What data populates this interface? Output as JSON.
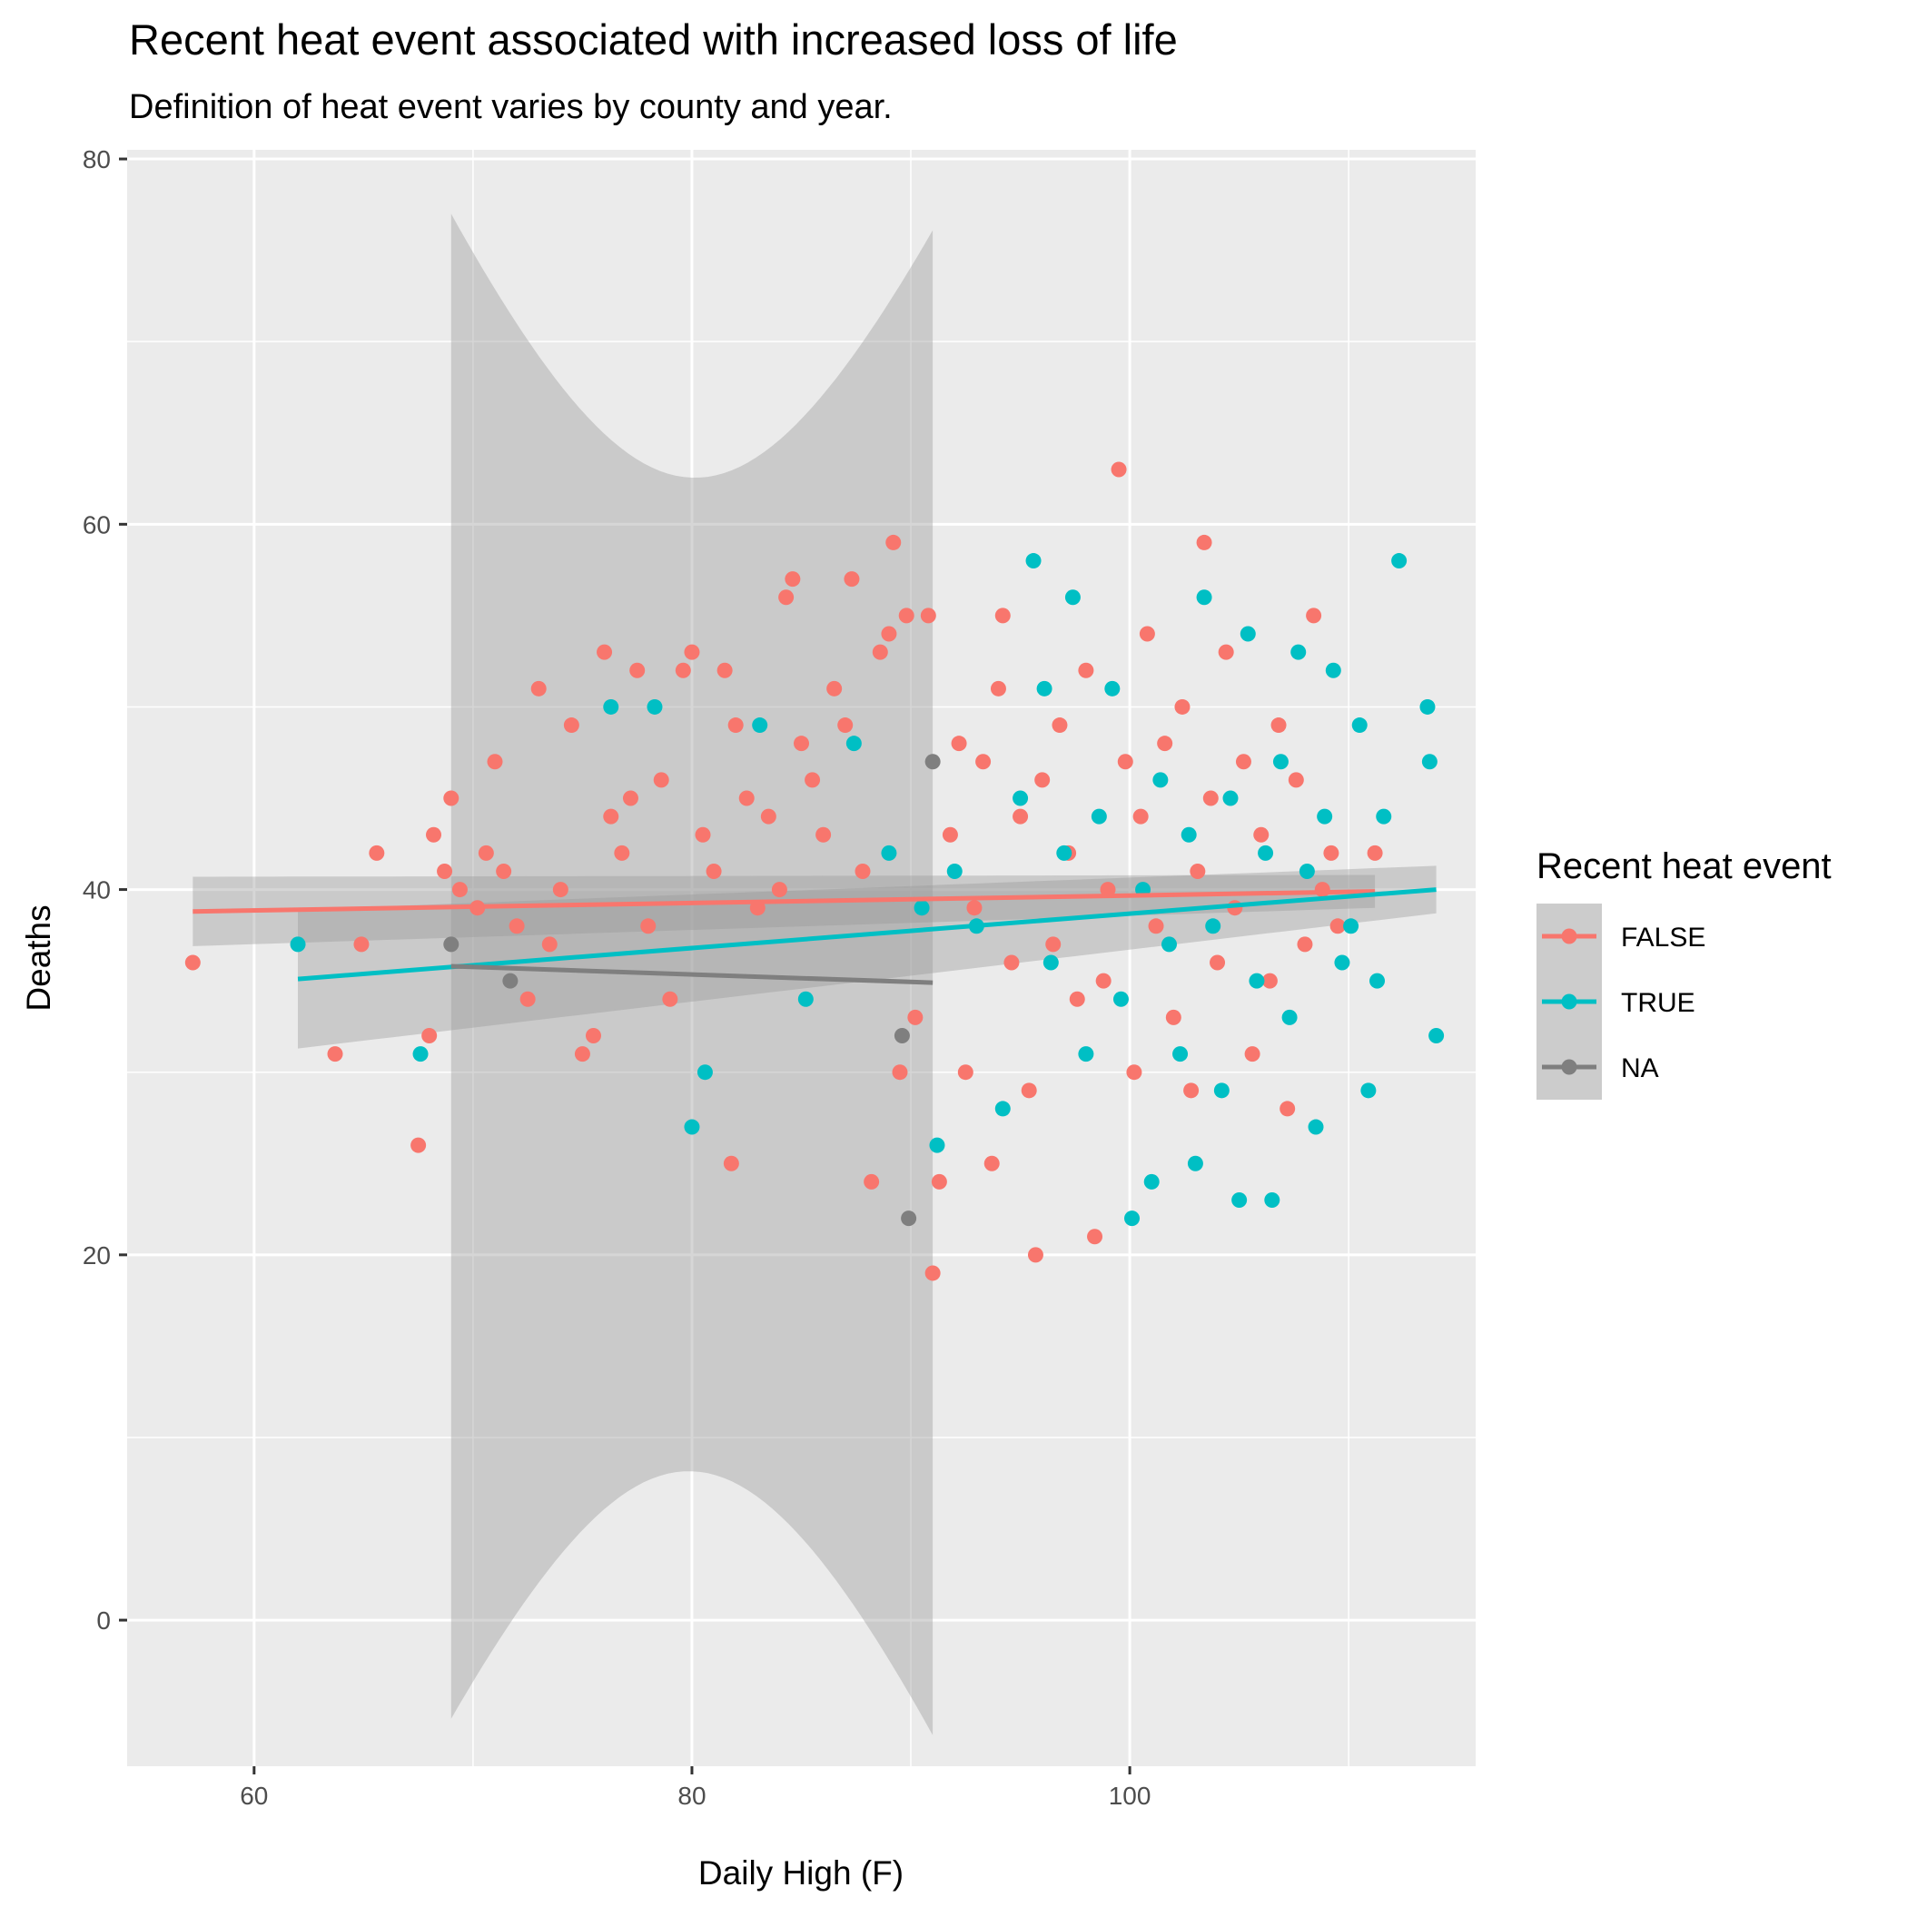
{
  "chart_data": {
    "type": "scatter",
    "title": "Recent heat event associated with increased loss of life",
    "subtitle": "Definition of heat event varies by county and year.",
    "xlabel": "Daily High (F)",
    "ylabel": "Deaths",
    "xlim": [
      54.2,
      115.8
    ],
    "ylim": [
      -8.0,
      80.5
    ],
    "x_ticks": [
      60,
      80,
      100
    ],
    "y_ticks": [
      0,
      20,
      40,
      60,
      80
    ],
    "grid": true,
    "legend": {
      "title": "Recent heat event",
      "position": "right",
      "entries": [
        "FALSE",
        "TRUE",
        "NA"
      ]
    },
    "series": [
      {
        "name": "FALSE",
        "color": "#F8766D",
        "points": [
          [
            57.2,
            36
          ],
          [
            63.7,
            31
          ],
          [
            64.9,
            37
          ],
          [
            65.6,
            42
          ],
          [
            67.5,
            26
          ],
          [
            68.0,
            32
          ],
          [
            68.2,
            43
          ],
          [
            68.7,
            41
          ],
          [
            69.0,
            45
          ],
          [
            69.4,
            40
          ],
          [
            70.2,
            39
          ],
          [
            70.6,
            42
          ],
          [
            71.0,
            47
          ],
          [
            71.4,
            41
          ],
          [
            72.0,
            38
          ],
          [
            72.5,
            34
          ],
          [
            73.0,
            51
          ],
          [
            73.5,
            37
          ],
          [
            74.0,
            40
          ],
          [
            74.5,
            49
          ],
          [
            75.0,
            31
          ],
          [
            75.5,
            32
          ],
          [
            76.0,
            53
          ],
          [
            76.3,
            44
          ],
          [
            76.8,
            42
          ],
          [
            77.2,
            45
          ],
          [
            77.5,
            52
          ],
          [
            78.0,
            38
          ],
          [
            78.6,
            46
          ],
          [
            79.0,
            34
          ],
          [
            79.6,
            52
          ],
          [
            80.0,
            53
          ],
          [
            80.5,
            43
          ],
          [
            81.0,
            41
          ],
          [
            81.5,
            52
          ],
          [
            81.8,
            25
          ],
          [
            82.0,
            49
          ],
          [
            82.5,
            45
          ],
          [
            83.0,
            39
          ],
          [
            83.5,
            44
          ],
          [
            84.0,
            40
          ],
          [
            84.3,
            56
          ],
          [
            84.6,
            57
          ],
          [
            85.0,
            48
          ],
          [
            85.5,
            46
          ],
          [
            86.0,
            43
          ],
          [
            86.5,
            51
          ],
          [
            87.0,
            49
          ],
          [
            87.3,
            57
          ],
          [
            87.8,
            41
          ],
          [
            88.2,
            24
          ],
          [
            88.6,
            53
          ],
          [
            89.0,
            54
          ],
          [
            89.2,
            59
          ],
          [
            89.5,
            30
          ],
          [
            89.8,
            55
          ],
          [
            90.2,
            33
          ],
          [
            90.8,
            55
          ],
          [
            91.0,
            19
          ],
          [
            91.3,
            24
          ],
          [
            91.8,
            43
          ],
          [
            92.2,
            48
          ],
          [
            92.5,
            30
          ],
          [
            92.9,
            39
          ],
          [
            93.3,
            47
          ],
          [
            93.7,
            25
          ],
          [
            94.0,
            51
          ],
          [
            94.2,
            55
          ],
          [
            94.6,
            36
          ],
          [
            95.0,
            44
          ],
          [
            95.4,
            29
          ],
          [
            95.7,
            20
          ],
          [
            96.0,
            46
          ],
          [
            96.5,
            37
          ],
          [
            96.8,
            49
          ],
          [
            97.2,
            42
          ],
          [
            97.6,
            34
          ],
          [
            98.0,
            52
          ],
          [
            98.4,
            21
          ],
          [
            98.8,
            35
          ],
          [
            99.0,
            40
          ],
          [
            99.5,
            63
          ],
          [
            99.8,
            47
          ],
          [
            100.2,
            30
          ],
          [
            100.5,
            44
          ],
          [
            100.8,
            54
          ],
          [
            101.2,
            38
          ],
          [
            101.6,
            48
          ],
          [
            102.0,
            33
          ],
          [
            102.4,
            50
          ],
          [
            102.8,
            29
          ],
          [
            103.1,
            41
          ],
          [
            103.4,
            59
          ],
          [
            103.7,
            45
          ],
          [
            104.0,
            36
          ],
          [
            104.4,
            53
          ],
          [
            104.8,
            39
          ],
          [
            105.2,
            47
          ],
          [
            105.6,
            31
          ],
          [
            106.0,
            43
          ],
          [
            106.4,
            35
          ],
          [
            106.8,
            49
          ],
          [
            107.2,
            28
          ],
          [
            107.6,
            46
          ],
          [
            108.0,
            37
          ],
          [
            108.4,
            55
          ],
          [
            108.8,
            40
          ],
          [
            109.2,
            42
          ],
          [
            109.5,
            38
          ],
          [
            111.2,
            42
          ]
        ]
      },
      {
        "name": "TRUE",
        "color": "#00BFC4",
        "points": [
          [
            62.0,
            37
          ],
          [
            67.6,
            31
          ],
          [
            76.3,
            50
          ],
          [
            78.3,
            50
          ],
          [
            80.0,
            27
          ],
          [
            80.6,
            30
          ],
          [
            83.1,
            49
          ],
          [
            85.2,
            34
          ],
          [
            87.4,
            48
          ],
          [
            89.0,
            42
          ],
          [
            90.5,
            39
          ],
          [
            91.2,
            26
          ],
          [
            92.0,
            41
          ],
          [
            93.0,
            38
          ],
          [
            94.2,
            28
          ],
          [
            95.0,
            45
          ],
          [
            95.6,
            58
          ],
          [
            96.1,
            51
          ],
          [
            96.4,
            36
          ],
          [
            97.0,
            42
          ],
          [
            97.4,
            56
          ],
          [
            98.0,
            31
          ],
          [
            98.6,
            44
          ],
          [
            99.2,
            51
          ],
          [
            99.6,
            34
          ],
          [
            100.1,
            22
          ],
          [
            100.6,
            40
          ],
          [
            101.0,
            24
          ],
          [
            101.4,
            46
          ],
          [
            101.8,
            37
          ],
          [
            102.3,
            31
          ],
          [
            102.7,
            43
          ],
          [
            103.0,
            25
          ],
          [
            103.4,
            56
          ],
          [
            103.8,
            38
          ],
          [
            104.2,
            29
          ],
          [
            104.6,
            45
          ],
          [
            105.0,
            23
          ],
          [
            105.4,
            54
          ],
          [
            105.8,
            35
          ],
          [
            106.2,
            42
          ],
          [
            106.5,
            23
          ],
          [
            106.9,
            47
          ],
          [
            107.3,
            33
          ],
          [
            107.7,
            53
          ],
          [
            108.1,
            41
          ],
          [
            108.5,
            27
          ],
          [
            108.9,
            44
          ],
          [
            109.3,
            52
          ],
          [
            109.7,
            36
          ],
          [
            110.1,
            38
          ],
          [
            110.5,
            49
          ],
          [
            110.9,
            29
          ],
          [
            111.3,
            35
          ],
          [
            111.6,
            44
          ],
          [
            112.3,
            58
          ],
          [
            113.6,
            50
          ],
          [
            113.7,
            47
          ],
          [
            114.0,
            32
          ]
        ]
      },
      {
        "name": "NA",
        "color": "#7F7F7F",
        "points": [
          [
            69.0,
            37
          ],
          [
            71.7,
            35
          ],
          [
            91.0,
            47
          ],
          [
            89.9,
            22
          ],
          [
            89.6,
            32
          ]
        ]
      }
    ],
    "trend_lines": [
      {
        "name": "FALSE",
        "color": "#F8766D",
        "x": [
          57.2,
          111.2
        ],
        "y": [
          38.8,
          39.9
        ],
        "ci_halfwidth": [
          1.9,
          0.9
        ]
      },
      {
        "name": "TRUE",
        "color": "#00BFC4",
        "x": [
          62.0,
          114.0
        ],
        "y": [
          35.1,
          40.0
        ],
        "ci_halfwidth": [
          3.8,
          1.3
        ]
      },
      {
        "name": "NA",
        "color": "#7F7F7F",
        "x": [
          69.0,
          91.0
        ],
        "y": [
          35.8,
          34.9
        ],
        "ci_halfwidth_min": 27.2,
        "ci_halfwidth_max": 41.2,
        "ci_center_x": 80.0
      }
    ]
  }
}
